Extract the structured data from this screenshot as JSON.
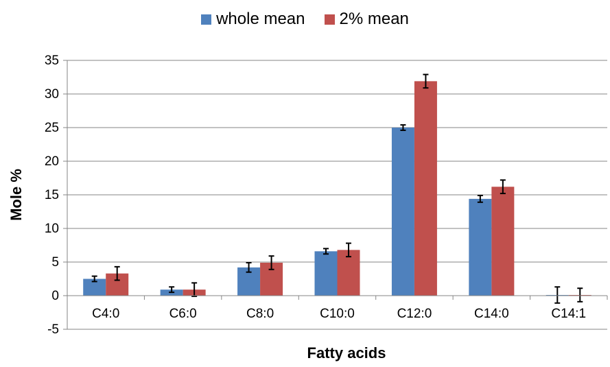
{
  "chart_data": {
    "type": "bar",
    "title": "",
    "xlabel": "Fatty acids",
    "ylabel": "Mole %",
    "ylim": [
      -5,
      35
    ],
    "yticks": [
      -5,
      0,
      5,
      10,
      15,
      20,
      25,
      30,
      35
    ],
    "grid": "horizontal",
    "legend": "top-center",
    "categories": [
      "C4:0",
      "C6:0",
      "C8:0",
      "C10:0",
      "C12:0",
      "C14:0",
      "C14:1"
    ],
    "series": [
      {
        "name": "whole mean",
        "color": "#4F81BD",
        "values": [
          2.5,
          0.9,
          4.2,
          6.6,
          25.0,
          14.4,
          0.1
        ],
        "error": [
          0.4,
          0.4,
          0.7,
          0.4,
          0.4,
          0.5,
          1.2
        ]
      },
      {
        "name": "2% mean",
        "color": "#C0504D",
        "values": [
          3.3,
          0.9,
          4.9,
          6.8,
          31.9,
          16.2,
          0.1
        ],
        "error": [
          1.0,
          1.0,
          1.0,
          1.0,
          1.0,
          1.0,
          1.0
        ]
      }
    ]
  }
}
